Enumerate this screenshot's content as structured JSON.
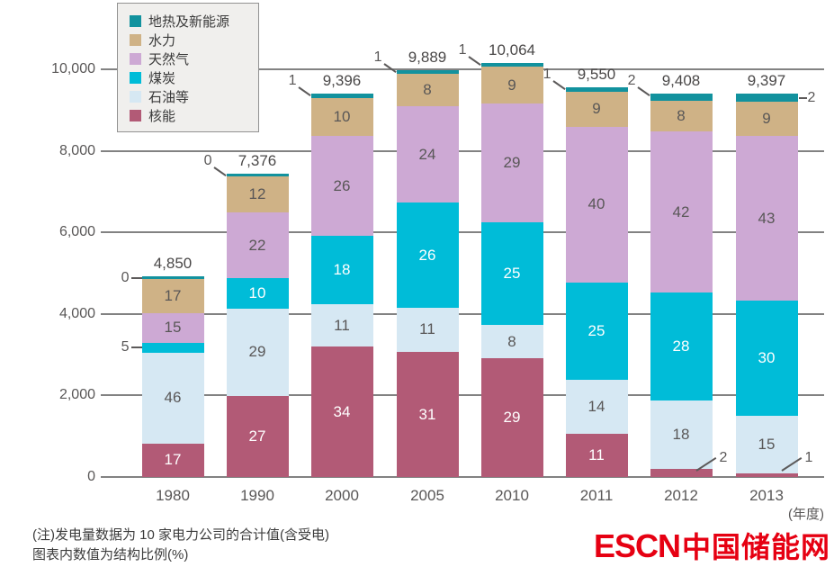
{
  "chart_data": {
    "type": "bar",
    "stacked": true,
    "title": "",
    "categories": [
      "1980",
      "1990",
      "2000",
      "2005",
      "2010",
      "2011",
      "2012",
      "2013"
    ],
    "totals": [
      4850,
      7376,
      9396,
      9889,
      10064,
      9550,
      9408,
      9397
    ],
    "total_labels": [
      "4,850",
      "7,376",
      "9,396",
      "9,889",
      "10,064",
      "9,550",
      "9,408",
      "9,397"
    ],
    "series": [
      {
        "key": "nuclear",
        "name": "核能",
        "color": "#b25a76",
        "text_color": "#ffffff",
        "values": [
          17,
          27,
          34,
          31,
          29,
          11,
          2,
          1
        ]
      },
      {
        "key": "oil",
        "name": "石油等",
        "color": "#d6e8f3",
        "text_color": "#595757",
        "values": [
          46,
          29,
          11,
          11,
          8,
          14,
          18,
          15
        ]
      },
      {
        "key": "coal",
        "name": "煤炭",
        "color": "#00bcd8",
        "text_color": "#ffffff",
        "values": [
          5,
          10,
          18,
          26,
          25,
          25,
          28,
          30
        ]
      },
      {
        "key": "gas",
        "name": "天然气",
        "color": "#cda9d4",
        "text_color": "#595757",
        "values": [
          15,
          22,
          26,
          24,
          29,
          40,
          42,
          43
        ]
      },
      {
        "key": "hydro",
        "name": "水力",
        "color": "#cfb286",
        "text_color": "#595757",
        "values": [
          17,
          12,
          10,
          8,
          9,
          9,
          8,
          9
        ]
      },
      {
        "key": "geothermal-new-energy",
        "name": "地热及新能源",
        "color": "#12929e",
        "text_color": "#ffffff",
        "values": [
          0,
          0,
          1,
          1,
          1,
          1,
          2,
          2
        ]
      }
    ],
    "y_axis": {
      "min": 0,
      "max": 10000,
      "tick_step": 2000,
      "tick_labels": [
        "0",
        "2,000",
        "4,000",
        "6,000",
        "8,000",
        "10,000"
      ]
    },
    "x_axis_unit": "(年度)",
    "grid": true,
    "legend_position": "top-left",
    "outside_labels": [
      {
        "category": "1980",
        "series": "地热及新能源",
        "side": "left"
      },
      {
        "category": "1980",
        "series": "煤炭",
        "side": "left"
      },
      {
        "category": "1990",
        "series": "地热及新能源",
        "side": "top-left"
      },
      {
        "category": "2000",
        "series": "地热及新能源",
        "side": "top-left"
      },
      {
        "category": "2005",
        "series": "地热及新能源",
        "side": "top-left"
      },
      {
        "category": "2010",
        "series": "地热及新能源",
        "side": "top-left"
      },
      {
        "category": "2011",
        "series": "地热及新能源",
        "side": "top-left"
      },
      {
        "category": "2012",
        "series": "地热及新能源",
        "side": "top-left"
      },
      {
        "category": "2013",
        "series": "地热及新能源",
        "side": "right"
      },
      {
        "category": "2012",
        "series": "核能",
        "side": "bottom-right"
      },
      {
        "category": "2013",
        "series": "核能",
        "side": "bottom-right"
      }
    ]
  },
  "notes": {
    "line1": "(注)发电量数据为 10 家电力公司的合计值(含受电)",
    "line2": "图表内数值为结构比例(%)"
  },
  "logo": {
    "latin": "ESCN",
    "chinese": "中国储能网",
    "color": "#e60012"
  }
}
